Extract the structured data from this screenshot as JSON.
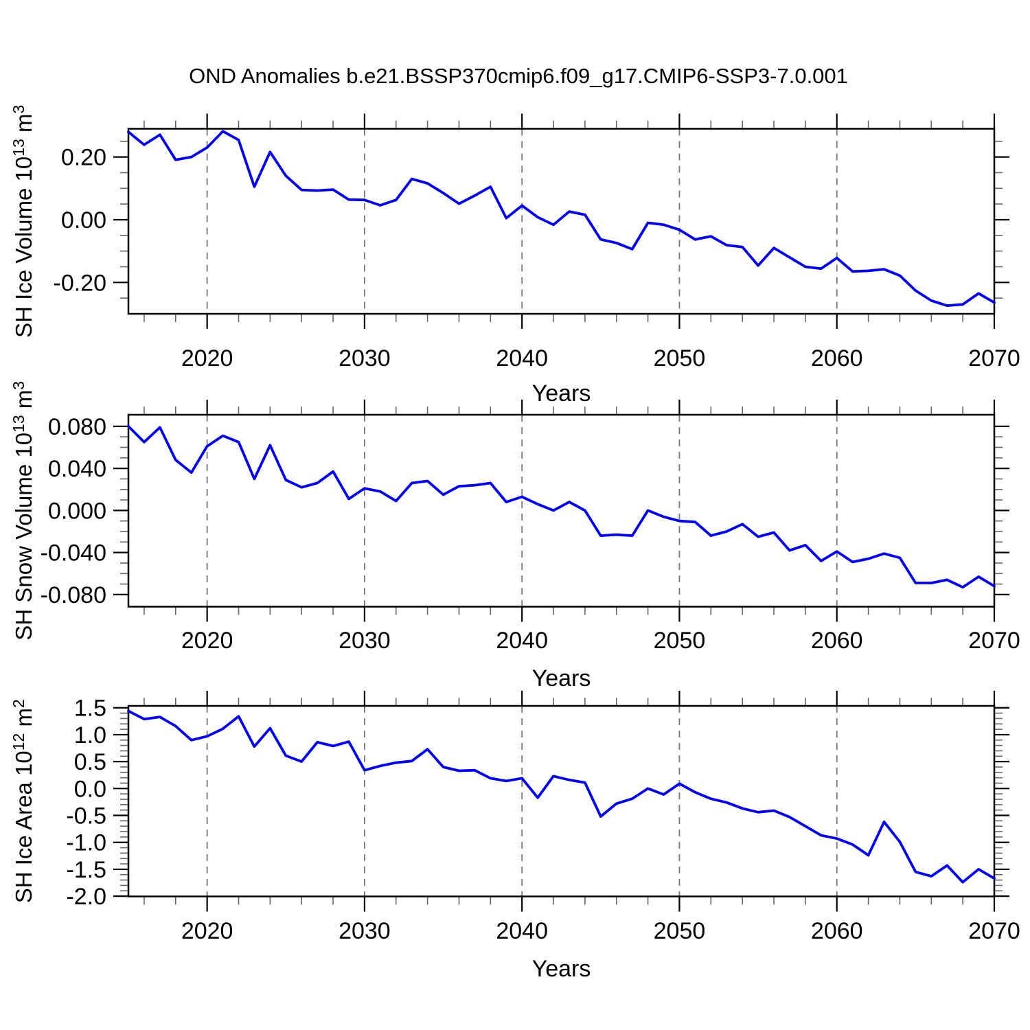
{
  "title": "OND Anomalies b.e21.BSSP370cmip6.f09_g17.CMIP6-SSP3-7.0.001",
  "chart_data": {
    "type": "line",
    "title": "OND Anomalies b.e21.BSSP370cmip6.f09_g17.CMIP6-SSP3-7.0.001",
    "x_label": "Years",
    "x_range": [
      2015,
      2070
    ],
    "x_minor_step": 2,
    "grid_decades": [
      2020,
      2030,
      2040,
      2050,
      2060
    ],
    "x_major_ticks": [
      {
        "v": 2020,
        "label": "2020"
      },
      {
        "v": 2030,
        "label": "2030"
      },
      {
        "v": 2040,
        "label": "2040"
      },
      {
        "v": 2050,
        "label": "2050"
      },
      {
        "v": 2060,
        "label": "2060"
      },
      {
        "v": 2070,
        "label": "2070"
      }
    ],
    "line_color": "#0000ff",
    "legend": "none",
    "grid": "vertical-dashed",
    "x": [
      2015,
      2016,
      2017,
      2018,
      2019,
      2020,
      2021,
      2022,
      2023,
      2024,
      2025,
      2026,
      2027,
      2028,
      2029,
      2030,
      2031,
      2032,
      2033,
      2034,
      2035,
      2036,
      2037,
      2038,
      2039,
      2040,
      2041,
      2042,
      2043,
      2044,
      2045,
      2046,
      2047,
      2048,
      2049,
      2050,
      2051,
      2052,
      2053,
      2054,
      2055,
      2056,
      2057,
      2058,
      2059,
      2060,
      2061,
      2062,
      2063,
      2064,
      2065,
      2066,
      2067,
      2068,
      2069,
      2070
    ],
    "panels": [
      {
        "name": "sh-ice-volume",
        "ylabel_text": "SH Ice Volume 10^13 m^3",
        "ylabel_parts": [
          {
            "text": "SH Ice Volume 10"
          },
          {
            "text": "13",
            "sup": true
          },
          {
            "text": " m"
          },
          {
            "text": "3",
            "sup": true
          }
        ],
        "ylim": [
          -0.3,
          0.29
        ],
        "yticks": [
          {
            "v": 0.2,
            "label": "0.20"
          },
          {
            "v": 0.0,
            "label": "0.00"
          },
          {
            "v": -0.2,
            "label": "-0.20"
          }
        ],
        "y_minor_step": 0.05,
        "values": [
          0.28,
          0.239,
          0.271,
          0.191,
          0.2,
          0.23,
          0.282,
          0.254,
          0.105,
          0.216,
          0.14,
          0.095,
          0.093,
          0.096,
          0.064,
          0.063,
          0.046,
          0.063,
          0.13,
          0.116,
          0.085,
          0.051,
          0.077,
          0.105,
          0.005,
          0.045,
          0.008,
          -0.016,
          0.026,
          0.016,
          -0.063,
          -0.074,
          -0.094,
          -0.01,
          -0.016,
          -0.032,
          -0.063,
          -0.053,
          -0.081,
          -0.087,
          -0.146,
          -0.09,
          -0.12,
          -0.15,
          -0.156,
          -0.122,
          -0.165,
          -0.163,
          -0.158,
          -0.178,
          -0.226,
          -0.258,
          -0.274,
          -0.27,
          -0.235,
          -0.264
        ]
      },
      {
        "name": "sh-snow-volume",
        "ylabel_text": "SH Snow Volume 10^13 m^3",
        "ylabel_parts": [
          {
            "text": "SH Snow Volume 10"
          },
          {
            "text": "13",
            "sup": true
          },
          {
            "text": " m"
          },
          {
            "text": "3",
            "sup": true
          }
        ],
        "ylim": [
          -0.0915,
          0.091
        ],
        "yticks": [
          {
            "v": 0.08,
            "label": "0.080"
          },
          {
            "v": 0.04,
            "label": "0.040"
          },
          {
            "v": 0.0,
            "label": "0.000"
          },
          {
            "v": -0.04,
            "label": "-0.040"
          },
          {
            "v": -0.08,
            "label": "-0.080"
          }
        ],
        "y_minor_step": 0.01,
        "values": [
          0.08,
          0.065,
          0.079,
          0.048,
          0.036,
          0.061,
          0.071,
          0.065,
          0.03,
          0.062,
          0.029,
          0.022,
          0.026,
          0.037,
          0.011,
          0.021,
          0.018,
          0.009,
          0.026,
          0.028,
          0.015,
          0.023,
          0.024,
          0.026,
          0.008,
          0.013,
          0.006,
          0.0,
          0.008,
          0.0,
          -0.024,
          -0.023,
          -0.024,
          0.0,
          -0.006,
          -0.01,
          -0.011,
          -0.024,
          -0.02,
          -0.013,
          -0.025,
          -0.021,
          -0.038,
          -0.033,
          -0.048,
          -0.039,
          -0.049,
          -0.046,
          -0.041,
          -0.045,
          -0.069,
          -0.069,
          -0.066,
          -0.073,
          -0.063,
          -0.072
        ]
      },
      {
        "name": "sh-ice-area",
        "ylabel_text": "SH Ice Area 10^12 m^2",
        "ylabel_parts": [
          {
            "text": "SH Ice Area 10"
          },
          {
            "text": "12",
            "sup": true
          },
          {
            "text": " m"
          },
          {
            "text": "2",
            "sup": true
          }
        ],
        "ylim": [
          -2.005,
          1.535
        ],
        "yticks": [
          {
            "v": 1.5,
            "label": "1.5"
          },
          {
            "v": 1.0,
            "label": "1.0"
          },
          {
            "v": 0.5,
            "label": "0.5"
          },
          {
            "v": 0.0,
            "label": "0.0"
          },
          {
            "v": -0.5,
            "label": "-0.5"
          },
          {
            "v": -1.0,
            "label": "-1.0"
          },
          {
            "v": -1.5,
            "label": "-1.5"
          },
          {
            "v": -2.0,
            "label": "-2.0"
          }
        ],
        "y_minor_step": 0.1,
        "values": [
          1.44,
          1.29,
          1.33,
          1.16,
          0.9,
          0.97,
          1.11,
          1.34,
          0.78,
          1.12,
          0.61,
          0.5,
          0.86,
          0.79,
          0.87,
          0.34,
          0.42,
          0.48,
          0.51,
          0.73,
          0.4,
          0.33,
          0.34,
          0.19,
          0.14,
          0.19,
          -0.17,
          0.23,
          0.16,
          0.11,
          -0.52,
          -0.28,
          -0.19,
          0.0,
          -0.11,
          0.09,
          -0.07,
          -0.19,
          -0.26,
          -0.37,
          -0.44,
          -0.41,
          -0.53,
          -0.7,
          -0.87,
          -0.93,
          -1.04,
          -1.24,
          -0.62,
          -0.99,
          -1.55,
          -1.63,
          -1.43,
          -1.74,
          -1.5,
          -1.67
        ]
      }
    ]
  }
}
